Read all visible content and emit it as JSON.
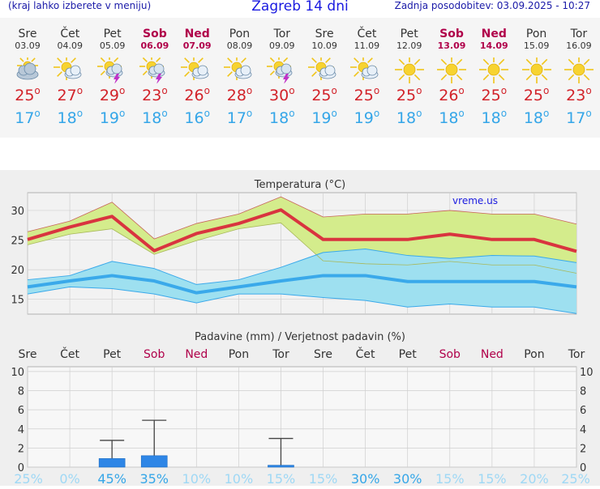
{
  "header": {
    "menu_hint": "(kraj lahko izberete v meniju)",
    "title": "Zagreb 14 dni",
    "updated": "Zadnja posodobitev: 03.09.2025 - 10:27"
  },
  "days": [
    {
      "name": "Sre",
      "date": "03.09",
      "weekend": false,
      "icon": "cloudy-icon",
      "tmax": "25",
      "tmin": "17"
    },
    {
      "name": "Čet",
      "date": "04.09",
      "weekend": false,
      "icon": "partly-cloudy-icon",
      "tmax": "27",
      "tmin": "18"
    },
    {
      "name": "Pet",
      "date": "05.09",
      "weekend": false,
      "icon": "thunderstorm-icon",
      "tmax": "29",
      "tmin": "19"
    },
    {
      "name": "Sob",
      "date": "06.09",
      "weekend": true,
      "icon": "thunderstorm-icon",
      "tmax": "23",
      "tmin": "18"
    },
    {
      "name": "Ned",
      "date": "07.09",
      "weekend": true,
      "icon": "partly-cloudy-icon",
      "tmax": "26",
      "tmin": "16"
    },
    {
      "name": "Pon",
      "date": "08.09",
      "weekend": false,
      "icon": "partly-cloudy-icon",
      "tmax": "28",
      "tmin": "17"
    },
    {
      "name": "Tor",
      "date": "09.09",
      "weekend": false,
      "icon": "thunderstorm-icon",
      "tmax": "30",
      "tmin": "18"
    },
    {
      "name": "Sre",
      "date": "10.09",
      "weekend": false,
      "icon": "partly-cloudy-icon",
      "tmax": "25",
      "tmin": "19"
    },
    {
      "name": "Čet",
      "date": "11.09",
      "weekend": false,
      "icon": "partly-cloudy-icon",
      "tmax": "25",
      "tmin": "19"
    },
    {
      "name": "Pet",
      "date": "12.09",
      "weekend": false,
      "icon": "sunny-icon",
      "tmax": "25",
      "tmin": "18"
    },
    {
      "name": "Sob",
      "date": "13.09",
      "weekend": true,
      "icon": "sunny-icon",
      "tmax": "26",
      "tmin": "18"
    },
    {
      "name": "Ned",
      "date": "14.09",
      "weekend": true,
      "icon": "sunny-icon",
      "tmax": "25",
      "tmin": "18"
    },
    {
      "name": "Pon",
      "date": "15.09",
      "weekend": false,
      "icon": "sunny-icon",
      "tmax": "25",
      "tmin": "18"
    },
    {
      "name": "Tor",
      "date": "16.09",
      "weekend": false,
      "icon": "sunny-icon",
      "tmax": "23",
      "tmin": "17"
    }
  ],
  "colors": {
    "max_line": "#d9343f",
    "max_band": "#d4ec8c",
    "max_band_lower": "#8ed48a",
    "min_line": "#3aa9ea",
    "min_band": "#9ee0f0",
    "weekend": "#b0004a",
    "precip_bar": "#2e86e6",
    "prob_high": "#35a6e8",
    "prob_low": "#9fd8f5"
  },
  "chart_data": [
    {
      "type": "line",
      "title": "Temperatura (°C)",
      "watermark": "vreme.us",
      "x": [
        "03.09",
        "04.09",
        "05.09",
        "06.09",
        "07.09",
        "08.09",
        "09.09",
        "10.09",
        "11.09",
        "12.09",
        "13.09",
        "14.09",
        "15.09",
        "16.09"
      ],
      "ylim": [
        12.5,
        33
      ],
      "yticks": [
        15,
        20,
        25,
        30
      ],
      "series": [
        {
          "role": "max",
          "values": [
            25.1,
            27.2,
            29.0,
            23.2,
            26.1,
            27.8,
            30.1,
            25.1,
            25.1,
            25.1,
            26.0,
            25.1,
            25.1,
            23.1
          ]
        },
        {
          "role": "max_upper",
          "values": [
            26.4,
            28.2,
            31.4,
            25.2,
            27.8,
            29.4,
            32.3,
            28.9,
            29.4,
            29.4,
            30.0,
            29.4,
            29.4,
            27.7
          ]
        },
        {
          "role": "max_lower",
          "values": [
            24.2,
            26.0,
            26.9,
            22.6,
            24.9,
            26.9,
            27.9,
            21.5,
            21.0,
            20.8,
            21.4,
            20.8,
            20.8,
            19.4
          ]
        },
        {
          "role": "min",
          "values": [
            17.1,
            18.1,
            19.0,
            18.1,
            16.1,
            17.1,
            18.1,
            19.0,
            19.0,
            18.0,
            18.0,
            18.0,
            18.0,
            17.1
          ]
        },
        {
          "role": "min_upper",
          "values": [
            18.3,
            19.0,
            21.4,
            20.2,
            17.5,
            18.3,
            20.4,
            22.9,
            23.5,
            22.4,
            21.9,
            22.4,
            22.3,
            21.2
          ]
        },
        {
          "role": "min_lower",
          "values": [
            15.9,
            17.1,
            16.8,
            15.9,
            14.4,
            15.9,
            15.9,
            15.3,
            14.8,
            13.7,
            14.2,
            13.7,
            13.7,
            12.6
          ]
        }
      ]
    },
    {
      "type": "bar",
      "title": "Padavine (mm) / Verjetnost padavin (%)",
      "categories": [
        "Sre",
        "Čet",
        "Pet",
        "Sob",
        "Ned",
        "Pon",
        "Tor",
        "Sre",
        "Čet",
        "Pet",
        "Sob",
        "Ned",
        "Pon",
        "Tor"
      ],
      "values": [
        0,
        0,
        0.9,
        1.2,
        0,
        0,
        0.2,
        0,
        0,
        0,
        0,
        0,
        0,
        0
      ],
      "error_max": [
        0,
        0,
        2.8,
        4.9,
        0,
        0,
        3.0,
        0,
        0,
        0,
        0,
        0,
        0,
        0
      ],
      "ylim": [
        0,
        10.5
      ],
      "yticks": [
        0,
        2,
        4,
        6,
        8,
        10
      ],
      "probability": [
        "25%",
        "0%",
        "45%",
        "35%",
        "10%",
        "10%",
        "15%",
        "15%",
        "30%",
        "30%",
        "15%",
        "15%",
        "20%",
        "25%"
      ],
      "probability_values": [
        25,
        0,
        45,
        35,
        10,
        10,
        15,
        15,
        30,
        30,
        15,
        15,
        20,
        25
      ]
    }
  ]
}
